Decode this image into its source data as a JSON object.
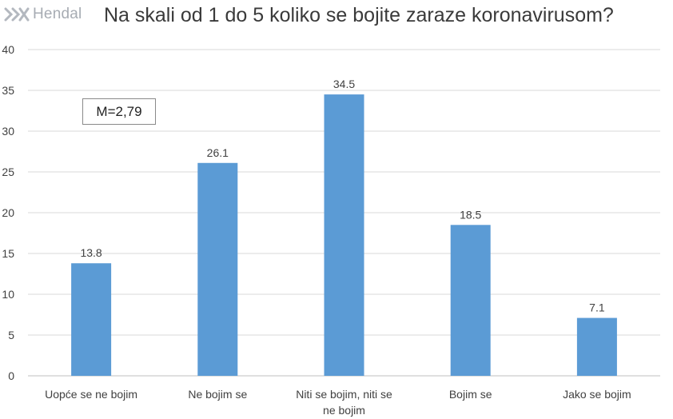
{
  "logo": {
    "text": "Hendal",
    "icon": "hendal-logo-icon"
  },
  "annotation": "M=2,79",
  "colors": {
    "bar": "#5b9bd5",
    "grid": "#d9d9d9",
    "axis": "#bfbfbf",
    "text": "#404040"
  },
  "chart_data": {
    "type": "bar",
    "title": "Na skali od 1 do 5 koliko se bojite zaraze koronavirusom?",
    "categories": [
      "Uopće se ne bojim",
      "Ne bojim se",
      "Niti se bojim, niti se ne bojim",
      "Bojim se",
      "Jako se bojim"
    ],
    "values": [
      13.8,
      26.1,
      34.5,
      18.5,
      7.1
    ],
    "value_labels": [
      "13.8",
      "26.1",
      "34.5",
      "18.5",
      "7.1"
    ],
    "ylim": [
      0,
      40
    ],
    "yticks": [
      "0",
      "5",
      "10",
      "15",
      "20",
      "25",
      "30",
      "35",
      "40"
    ],
    "grid": true,
    "legend": "none"
  }
}
